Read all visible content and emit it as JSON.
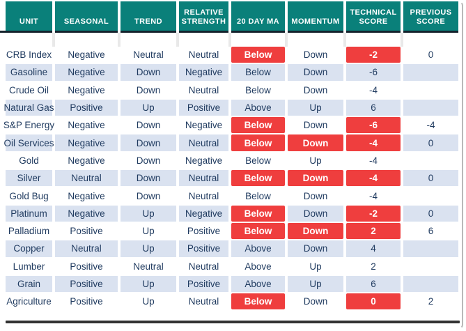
{
  "chart_data": {
    "type": "table",
    "title": "Commodity technical score table",
    "columns": [
      "UNIT",
      "SEASONAL",
      "TREND",
      "RELATIVE STRENGTH",
      "20 DAY MA",
      "MOMENTUM",
      "TECHNICAL SCORE",
      "PREVIOUS SCORE"
    ],
    "rows": [
      {
        "cells": [
          "CRB Index",
          "Negative",
          "Neutral",
          "Neutral",
          "Below",
          "Down",
          "-2",
          "0"
        ],
        "red_cells": [
          4,
          6
        ]
      },
      {
        "cells": [
          "Gasoline",
          "Negative",
          "Down",
          "Negative",
          "Below",
          "Down",
          "-6",
          ""
        ],
        "red_cells": []
      },
      {
        "cells": [
          "Crude Oil",
          "Negative",
          "Down",
          "Neutral",
          "Below",
          "Down",
          "-4",
          ""
        ],
        "red_cells": []
      },
      {
        "cells": [
          "Natural Gas",
          "Positive",
          "Up",
          "Positive",
          "Above",
          "Up",
          "6",
          ""
        ],
        "red_cells": []
      },
      {
        "cells": [
          "S&P Energy",
          "Negative",
          "Down",
          "Negative",
          "Below",
          "Down",
          "-6",
          "-4"
        ],
        "red_cells": [
          4,
          6
        ]
      },
      {
        "cells": [
          "Oil Services",
          "Negative",
          "Down",
          "Neutral",
          "Below",
          "Down",
          "-4",
          "0"
        ],
        "red_cells": [
          4,
          5,
          6
        ]
      },
      {
        "cells": [
          "Gold",
          "Negative",
          "Down",
          "Negative",
          "Below",
          "Up",
          "-4",
          ""
        ],
        "red_cells": []
      },
      {
        "cells": [
          "Silver",
          "Neutral",
          "Down",
          "Neutral",
          "Below",
          "Down",
          "-4",
          "0"
        ],
        "red_cells": [
          4,
          5,
          6
        ]
      },
      {
        "cells": [
          "Gold Bug",
          "Negative",
          "Down",
          "Neutral",
          "Below",
          "Down",
          "-4",
          ""
        ],
        "red_cells": []
      },
      {
        "cells": [
          "Platinum",
          "Negative",
          "Up",
          "Negative",
          "Below",
          "Down",
          "-2",
          "0"
        ],
        "red_cells": [
          4,
          6
        ]
      },
      {
        "cells": [
          "Palladium",
          "Positive",
          "Up",
          "Positive",
          "Below",
          "Down",
          "2",
          "6"
        ],
        "red_cells": [
          4,
          5,
          6
        ]
      },
      {
        "cells": [
          "Copper",
          "Neutral",
          "Up",
          "Positive",
          "Above",
          "Down",
          "4",
          ""
        ],
        "red_cells": []
      },
      {
        "cells": [
          "Lumber",
          "Positive",
          "Neutral",
          "Neutral",
          "Above",
          "Up",
          "2",
          ""
        ],
        "red_cells": []
      },
      {
        "cells": [
          "Grain",
          "Positive",
          "Up",
          "Positive",
          "Above",
          "Up",
          "6",
          ""
        ],
        "red_cells": []
      },
      {
        "cells": [
          "Agriculture",
          "Positive",
          "Up",
          "Neutral",
          "Below",
          "Down",
          "0",
          "2"
        ],
        "red_cells": [
          4,
          6
        ]
      }
    ],
    "layout_hints": {
      "row_striping": "white / light blue alternating",
      "highlight_meaning": "red cells flag bearish Below/Down signals and highlighted technical scores"
    },
    "colors": {
      "header_bg": "#0A807A",
      "header_text": "#FFFFFF",
      "row_alt_bg": "#DAE2F0",
      "row_bg": "#FFFFFF",
      "highlight_bg": "#EF3E3E",
      "highlight_text": "#FFFFFF",
      "body_text": "#1F3A5F",
      "header_underline": "#14222C",
      "bottom_border": "#333333"
    }
  }
}
